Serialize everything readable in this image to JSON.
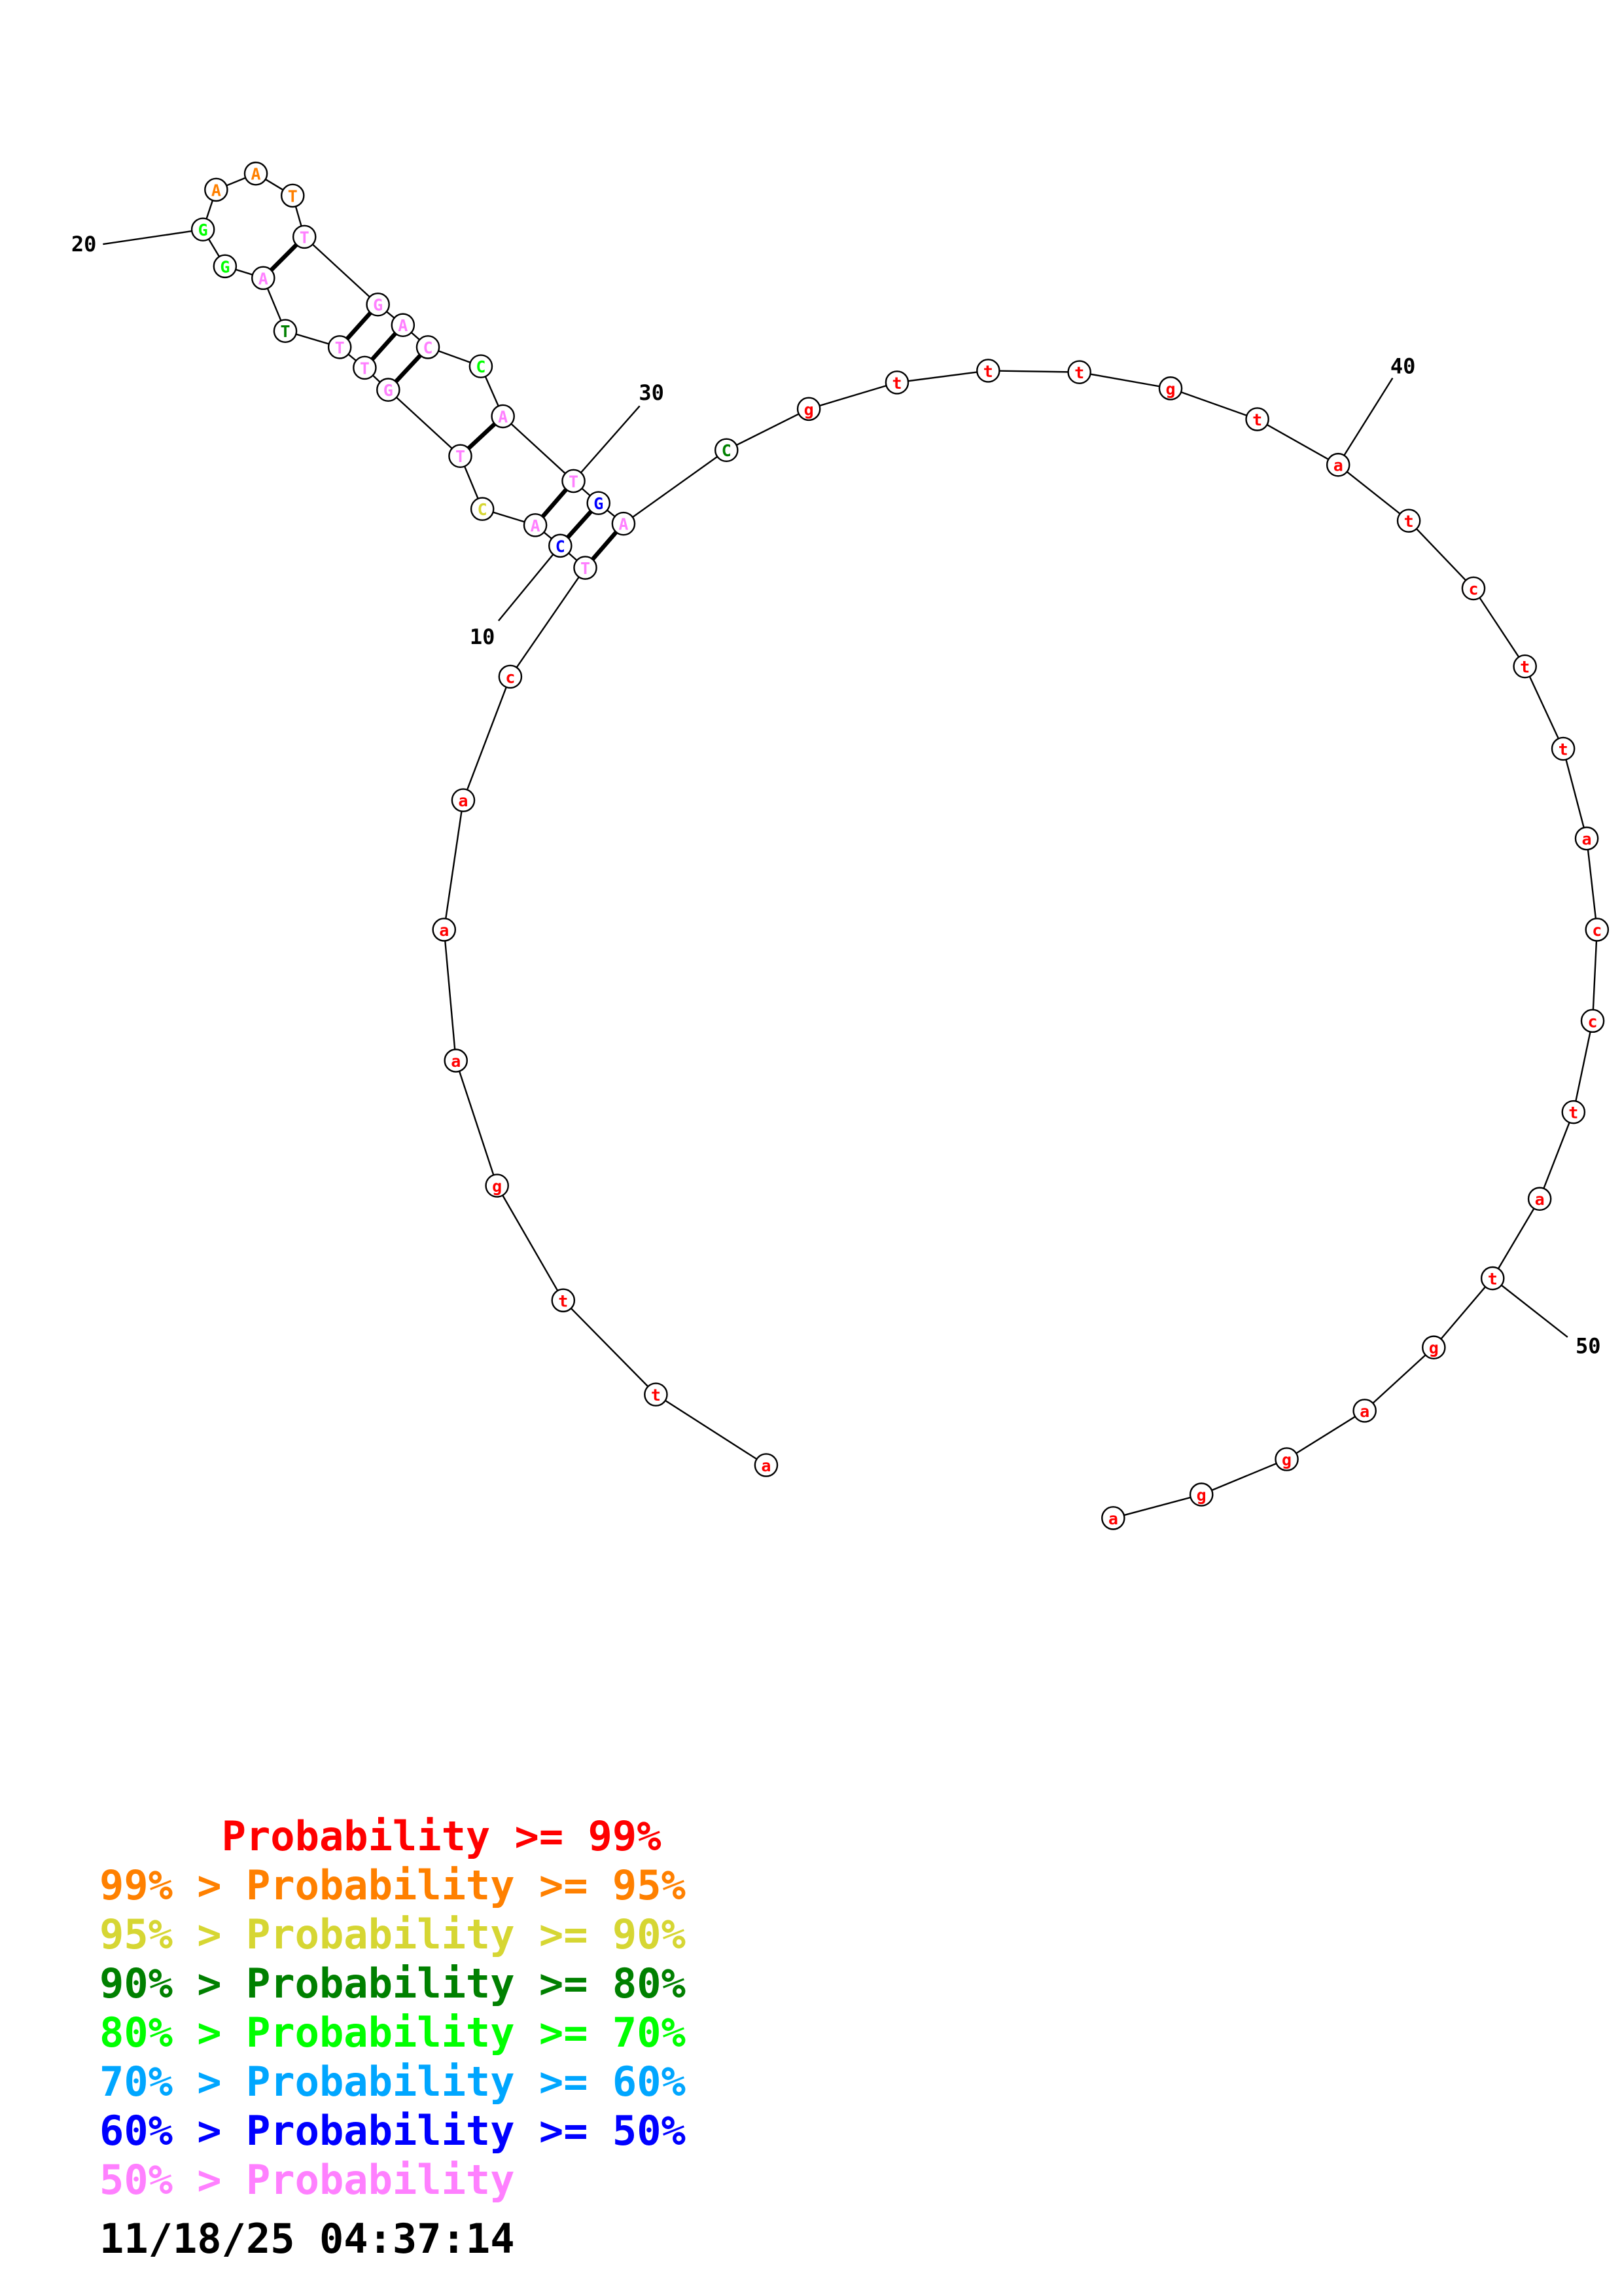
{
  "colors": {
    "p99": "#ff0000",
    "p95": "#ff8000",
    "p90": "#d6d633",
    "p80": "#008000",
    "p70": "#00ff00",
    "p60": "#00a6ff",
    "p50": "#0000ff",
    "plow": "#ff80ff",
    "text": "#000000"
  },
  "structure": {
    "bases": [
      {
        "n": 1,
        "base": "a",
        "cls": "p99"
      },
      {
        "n": 2,
        "base": "t",
        "cls": "p99"
      },
      {
        "n": 3,
        "base": "t",
        "cls": "p99"
      },
      {
        "n": 4,
        "base": "g",
        "cls": "p99"
      },
      {
        "n": 5,
        "base": "a",
        "cls": "p99"
      },
      {
        "n": 6,
        "base": "a",
        "cls": "p99"
      },
      {
        "n": 7,
        "base": "a",
        "cls": "p99"
      },
      {
        "n": 8,
        "base": "c",
        "cls": "p99"
      },
      {
        "n": 9,
        "base": "T",
        "cls": "plow"
      },
      {
        "n": 10,
        "base": "C",
        "cls": "p50"
      },
      {
        "n": 11,
        "base": "A",
        "cls": "plow"
      },
      {
        "n": 12,
        "base": "C",
        "cls": "p90"
      },
      {
        "n": 13,
        "base": "T",
        "cls": "plow"
      },
      {
        "n": 14,
        "base": "G",
        "cls": "plow"
      },
      {
        "n": 15,
        "base": "T",
        "cls": "plow"
      },
      {
        "n": 16,
        "base": "T",
        "cls": "plow"
      },
      {
        "n": 17,
        "base": "T",
        "cls": "p80"
      },
      {
        "n": 18,
        "base": "A",
        "cls": "plow"
      },
      {
        "n": 19,
        "base": "G",
        "cls": "p70"
      },
      {
        "n": 20,
        "base": "G",
        "cls": "p70"
      },
      {
        "n": 21,
        "base": "A",
        "cls": "p95"
      },
      {
        "n": 22,
        "base": "A",
        "cls": "p95"
      },
      {
        "n": 23,
        "base": "T",
        "cls": "p95"
      },
      {
        "n": 24,
        "base": "T",
        "cls": "plow"
      },
      {
        "n": 25,
        "base": "G",
        "cls": "plow"
      },
      {
        "n": 26,
        "base": "A",
        "cls": "plow"
      },
      {
        "n": 27,
        "base": "C",
        "cls": "plow"
      },
      {
        "n": 28,
        "base": "C",
        "cls": "p70"
      },
      {
        "n": 29,
        "base": "A",
        "cls": "plow"
      },
      {
        "n": 30,
        "base": "T",
        "cls": "plow"
      },
      {
        "n": 31,
        "base": "G",
        "cls": "p50"
      },
      {
        "n": 32,
        "base": "A",
        "cls": "plow"
      },
      {
        "n": 33,
        "base": "C",
        "cls": "p80"
      },
      {
        "n": 34,
        "base": "g",
        "cls": "p99"
      },
      {
        "n": 35,
        "base": "t",
        "cls": "p99"
      },
      {
        "n": 36,
        "base": "t",
        "cls": "p99"
      },
      {
        "n": 37,
        "base": "t",
        "cls": "p99"
      },
      {
        "n": 38,
        "base": "g",
        "cls": "p99"
      },
      {
        "n": 39,
        "base": "t",
        "cls": "p99"
      },
      {
        "n": 40,
        "base": "a",
        "cls": "p99"
      },
      {
        "n": 41,
        "base": "t",
        "cls": "p99"
      },
      {
        "n": 42,
        "base": "c",
        "cls": "p99"
      },
      {
        "n": 43,
        "base": "t",
        "cls": "p99"
      },
      {
        "n": 44,
        "base": "t",
        "cls": "p99"
      },
      {
        "n": 45,
        "base": "a",
        "cls": "p99"
      },
      {
        "n": 46,
        "base": "c",
        "cls": "p99"
      },
      {
        "n": 47,
        "base": "c",
        "cls": "p99"
      },
      {
        "n": 48,
        "base": "t",
        "cls": "p99"
      },
      {
        "n": 49,
        "base": "a",
        "cls": "p99"
      },
      {
        "n": 50,
        "base": "t",
        "cls": "p99"
      },
      {
        "n": 51,
        "base": "g",
        "cls": "p99"
      },
      {
        "n": 52,
        "base": "a",
        "cls": "p99"
      },
      {
        "n": 53,
        "base": "g",
        "cls": "p99"
      },
      {
        "n": 54,
        "base": "g",
        "cls": "p99"
      },
      {
        "n": 55,
        "base": "a",
        "cls": "p99"
      }
    ],
    "pairs": [
      [
        9,
        32
      ],
      [
        10,
        31
      ],
      [
        11,
        30
      ],
      [
        13,
        29
      ],
      [
        14,
        27
      ],
      [
        15,
        26
      ],
      [
        16,
        25
      ],
      [
        18,
        24
      ]
    ],
    "position_labels": [
      {
        "n": 10,
        "text": "10"
      },
      {
        "n": 20,
        "text": "20"
      },
      {
        "n": 30,
        "text": "30"
      },
      {
        "n": 40,
        "text": "40"
      },
      {
        "n": 50,
        "text": "50"
      }
    ]
  },
  "legend": [
    {
      "text": "     Probability >= 99%",
      "color": "p99"
    },
    {
      "text": "99% > Probability >= 95%",
      "color": "p95"
    },
    {
      "text": "95% > Probability >= 90%",
      "color": "p90"
    },
    {
      "text": "90% > Probability >= 80%",
      "color": "p80"
    },
    {
      "text": "80% > Probability >= 70%",
      "color": "p70"
    },
    {
      "text": "70% > Probability >= 60%",
      "color": "p60"
    },
    {
      "text": "60% > Probability >= 50%",
      "color": "p50"
    },
    {
      "text": "50% > Probability",
      "color": "plow"
    }
  ],
  "timestamp": "11/18/25 04:37:14"
}
